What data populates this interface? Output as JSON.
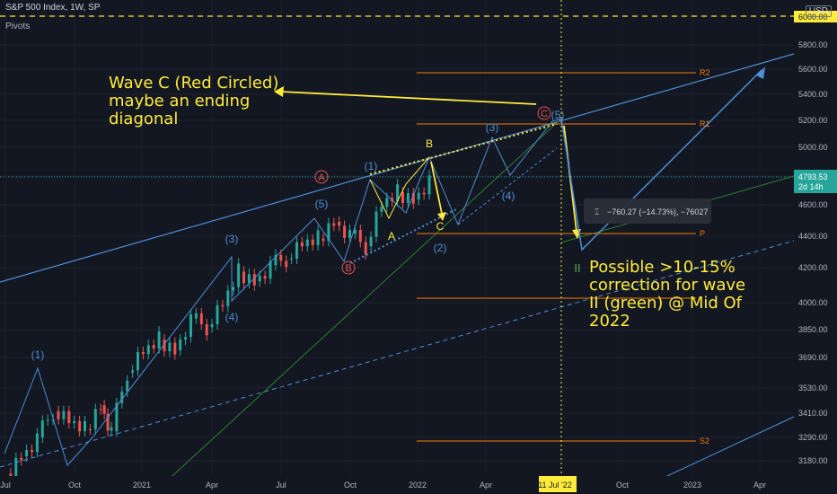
{
  "header": {
    "symbol": "S&P 500 Index, 1W, SP",
    "indicator": "Pivots",
    "currency": "USD"
  },
  "price_axis": {
    "ticks": [
      "6000.00",
      "5800.00",
      "5600.00",
      "5400.00",
      "5200.00",
      "5000.00",
      "4800.00",
      "4600.00",
      "4400.00",
      "4200.00",
      "4000.00",
      "3850.00",
      "3690.00",
      "3530.00",
      "3410.00",
      "3290.00",
      "3180.00"
    ],
    "last_price": "4793.53",
    "last_price_sub": "2d 14h",
    "target_price": "6000.00"
  },
  "time_axis": {
    "ticks": [
      "Jul",
      "Oct",
      "2021",
      "Apr",
      "Jul",
      "Oct",
      "2022",
      "Apr",
      "11 Jul '22",
      "Oct",
      "2023",
      "Apr"
    ],
    "highlight": "11 Jul '22"
  },
  "pivots": {
    "r2": "R2",
    "r1": "R1",
    "p": "P",
    "s2": "S2"
  },
  "wave_labels": {
    "w1": "(1)",
    "w3": "(3)",
    "w4": "(4)",
    "w5": "(5)",
    "w1b": "(1)",
    "w2b": "(2)",
    "w3b": "(3)",
    "w4b": "(4)",
    "w5b": "(5)",
    "A": "A",
    "B": "B",
    "C": "C",
    "circA": "A",
    "circB": "B",
    "circC": "C",
    "ii": "II"
  },
  "measure_box": "−760.27 (−14.73%), −76027",
  "annotations": {
    "wave_c": "Wave C (Red Circled) maybe an ending diagonal",
    "correction": "Possible >10-15% correction for wave II (green) @ Mid Of 2022"
  },
  "colors": {
    "bg": "#131722",
    "up": "#26a69a",
    "down": "#ef5350",
    "wave": "#4c8fd6",
    "note": "#ffeb3b",
    "pivot": "#f57c00"
  },
  "chart_data": {
    "type": "candlestick",
    "title": "S&P 500 Index, 1W, SP",
    "xlabel": "",
    "ylabel": "",
    "ylim": [
      3130,
      6100
    ],
    "y_scale": "log",
    "close_series": [
      {
        "date": "2020-06-15",
        "close": 3100
      },
      {
        "date": "2020-07-06",
        "close": 3180
      },
      {
        "date": "2020-07-27",
        "close": 3270
      },
      {
        "date": "2020-08-17",
        "close": 3400
      },
      {
        "date": "2020-09-07",
        "close": 3340
      },
      {
        "date": "2020-09-28",
        "close": 3310
      },
      {
        "date": "2020-10-19",
        "close": 3430
      },
      {
        "date": "2020-11-02",
        "close": 3300
      },
      {
        "date": "2020-11-23",
        "close": 3600
      },
      {
        "date": "2020-12-14",
        "close": 3700
      },
      {
        "date": "2021-01-04",
        "close": 3780
      },
      {
        "date": "2021-01-25",
        "close": 3720
      },
      {
        "date": "2021-02-15",
        "close": 3900
      },
      {
        "date": "2021-03-08",
        "close": 3850
      },
      {
        "date": "2021-03-29",
        "close": 3970
      },
      {
        "date": "2021-04-19",
        "close": 4180
      },
      {
        "date": "2021-05-10",
        "close": 4120
      },
      {
        "date": "2021-05-31",
        "close": 4220
      },
      {
        "date": "2021-06-21",
        "close": 4260
      },
      {
        "date": "2021-07-12",
        "close": 4340
      },
      {
        "date": "2021-08-02",
        "close": 4390
      },
      {
        "date": "2021-08-23",
        "close": 4500
      },
      {
        "date": "2021-09-13",
        "close": 4420
      },
      {
        "date": "2021-10-04",
        "close": 4340
      },
      {
        "date": "2021-10-25",
        "close": 4600
      },
      {
        "date": "2021-11-15",
        "close": 4700
      },
      {
        "date": "2021-12-06",
        "close": 4650
      },
      {
        "date": "2021-12-27",
        "close": 4790
      }
    ],
    "pivot_levels": {
      "R2": 5560,
      "R1": 5180,
      "P": 4420,
      "S2": 3265
    },
    "projection_target": 6000
  }
}
